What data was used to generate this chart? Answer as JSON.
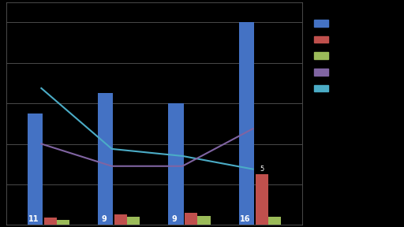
{
  "categories": [
    "11",
    "9",
    "9",
    "16"
  ],
  "blue_bars": [
    11,
    13,
    12,
    20
  ],
  "red_bars": [
    0.7,
    1.0,
    1.2,
    5.0
  ],
  "green_bars": [
    0.5,
    0.8,
    0.9,
    0.8
  ],
  "cyan_line_y": [
    13.5,
    7.5,
    6.8,
    5.5
  ],
  "purple_line_y": [
    8.0,
    5.8,
    5.8,
    9.5
  ],
  "bar_width": 0.18,
  "ylim": [
    0,
    22
  ],
  "bg_color": "#000000",
  "blue_color": "#4472C4",
  "red_color": "#C0504D",
  "green_color": "#9BBB59",
  "purple_color": "#8064A2",
  "cyan_color": "#4BACC6",
  "grid_color": "#666666",
  "text_color": "#ffffff",
  "label_color": "#000000"
}
